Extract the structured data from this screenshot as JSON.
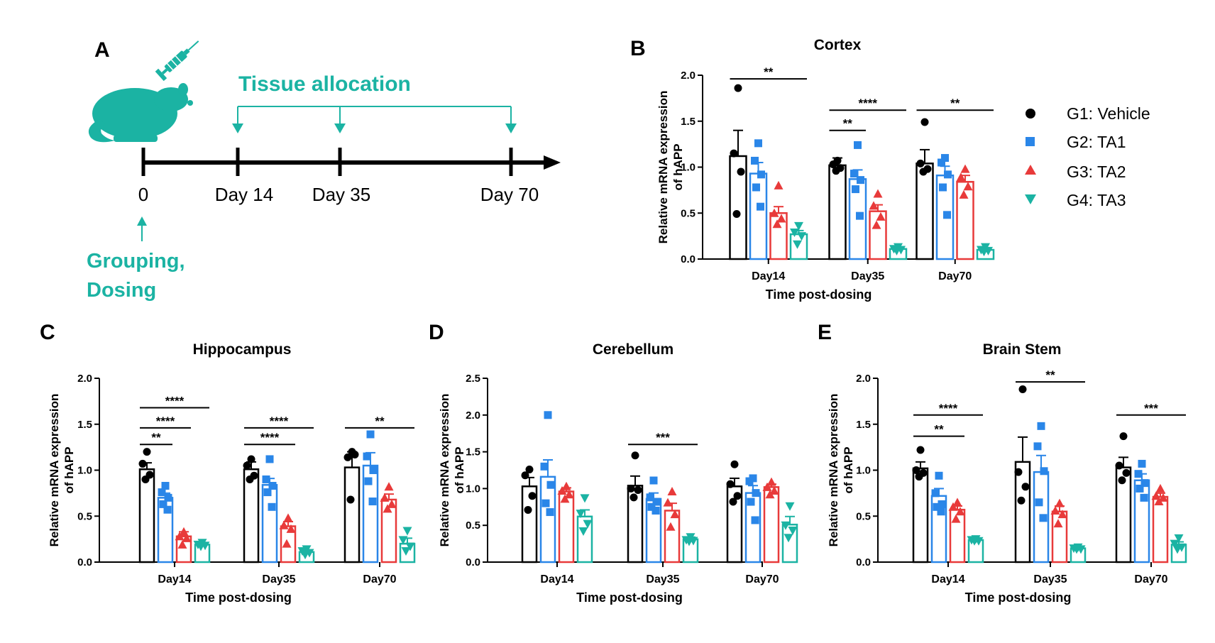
{
  "colors": {
    "G1": "#000000",
    "G2": "#2a86e8",
    "G3": "#e83a3a",
    "G4": "#1bb3a3",
    "teal": "#1bb3a3"
  },
  "panelA": {
    "label": "A",
    "tissue_allocation": "Tissue allocation",
    "timepoints": [
      "0",
      "Day 14",
      "Day 35",
      "Day 70"
    ],
    "grouping_line1": "Grouping,",
    "grouping_line2": "Dosing",
    "icons": [
      "mouse-icon",
      "syringe-icon"
    ]
  },
  "legend": [
    {
      "label": "G1: Vehicle",
      "marker": "circle"
    },
    {
      "label": "G2: TA1",
      "marker": "square"
    },
    {
      "label": "G3: TA2",
      "marker": "triangle-up"
    },
    {
      "label": "G4: TA3",
      "marker": "triangle-down"
    }
  ],
  "chart_data": [
    {
      "panel": "B",
      "type": "bar",
      "title": "Cortex",
      "xlabel": "Time post-dosing",
      "ylabel": [
        "Relative mRNA expression",
        "of hAPP"
      ],
      "categories": [
        "Day14",
        "Day35",
        "Day70"
      ],
      "ylim": [
        0,
        2.0
      ],
      "yticks": [
        "0.0",
        "0.5",
        "1.0",
        "1.5",
        "2.0"
      ],
      "series": [
        {
          "name": "G1: Vehicle",
          "values": [
            1.12,
            1.02,
            1.04
          ],
          "sem": [
            0.28,
            0.08,
            0.15
          ],
          "points": [
            [
              1.86,
              1.15,
              0.95,
              0.49
            ],
            [
              1.07,
              1.03,
              0.99,
              0.96
            ],
            [
              1.49,
              1.04,
              0.98,
              0.95
            ]
          ]
        },
        {
          "name": "G2: TA1",
          "values": [
            0.93,
            0.87,
            0.91
          ],
          "sem": [
            0.12,
            0.1,
            0.1
          ],
          "points": [
            [
              1.26,
              1.07,
              0.92,
              0.78,
              0.57
            ],
            [
              1.24,
              0.93,
              0.86,
              0.76,
              0.47
            ],
            [
              1.1,
              1.05,
              0.92,
              0.78,
              0.48
            ]
          ]
        },
        {
          "name": "G3: TA2",
          "values": [
            0.5,
            0.52,
            0.84
          ],
          "sem": [
            0.07,
            0.07,
            0.07
          ],
          "points": [
            [
              0.8,
              0.5,
              0.44,
              0.38
            ],
            [
              0.71,
              0.58,
              0.46,
              0.37
            ],
            [
              0.98,
              0.89,
              0.79,
              0.7
            ]
          ]
        },
        {
          "name": "G4: TA3",
          "values": [
            0.27,
            0.11,
            0.1
          ],
          "sem": [
            0.04,
            0.01,
            0.02
          ],
          "points": [
            [
              0.36,
              0.29,
              0.25,
              0.16
            ],
            [
              0.13,
              0.11,
              0.1,
              0.09
            ],
            [
              0.13,
              0.1,
              0.09,
              0.08
            ]
          ]
        }
      ],
      "significance": [
        {
          "cat": 0,
          "from": 0,
          "to": 3,
          "label": "**",
          "y": 1.96
        },
        {
          "cat": 1,
          "from": 0,
          "to": 3,
          "label": "****",
          "y": 1.62
        },
        {
          "cat": 1,
          "from": 0,
          "to": 1,
          "label": "**",
          "y": 1.4
        },
        {
          "cat": 2,
          "from": 0,
          "to": 3,
          "label": "**",
          "y": 1.62
        }
      ]
    },
    {
      "panel": "C",
      "type": "bar",
      "title": "Hippocampus",
      "xlabel": "Time post-dosing",
      "ylabel": [
        "Relative mRNA expression",
        "of hAPP"
      ],
      "categories": [
        "Day14",
        "Day35",
        "Day70"
      ],
      "ylim": [
        0,
        2.0
      ],
      "yticks": [
        "0.0",
        "0.5",
        "1.0",
        "1.5",
        "2.0"
      ],
      "series": [
        {
          "name": "G1: Vehicle",
          "values": [
            1.01,
            1.01,
            1.03
          ],
          "sem": [
            0.07,
            0.08,
            0.17
          ],
          "points": [
            [
              1.2,
              1.07,
              0.95,
              0.9
            ],
            [
              1.12,
              1.05,
              0.94,
              0.9
            ],
            [
              1.2,
              1.14,
              1.17,
              0.68
            ]
          ]
        },
        {
          "name": "G2: TA1",
          "values": [
            0.7,
            0.84,
            1.05
          ],
          "sem": [
            0.05,
            0.07,
            0.14
          ],
          "points": [
            [
              0.83,
              0.76,
              0.7,
              0.63,
              0.57
            ],
            [
              1.12,
              0.9,
              0.83,
              0.76,
              0.6
            ],
            [
              1.39,
              1.15,
              1.0,
              0.88,
              0.66
            ]
          ]
        },
        {
          "name": "G3: TA2",
          "values": [
            0.28,
            0.39,
            0.68
          ],
          "sem": [
            0.05,
            0.05,
            0.06
          ],
          "points": [
            [
              0.33,
              0.28,
              0.26,
              0.19
            ],
            [
              0.48,
              0.4,
              0.36,
              0.2
            ],
            [
              0.82,
              0.7,
              0.63,
              0.58
            ]
          ]
        },
        {
          "name": "G4: TA3",
          "values": [
            0.19,
            0.11,
            0.2
          ],
          "sem": [
            0.02,
            0.02,
            0.06
          ],
          "points": [
            [
              0.21,
              0.19,
              0.18,
              0.17
            ],
            [
              0.14,
              0.12,
              0.1,
              0.08
            ],
            [
              0.34,
              0.24,
              0.17,
              0.12
            ]
          ]
        }
      ],
      "significance": [
        {
          "cat": 0,
          "from": 0,
          "to": 3,
          "label": "****",
          "y": 1.68
        },
        {
          "cat": 0,
          "from": 0,
          "to": 2,
          "label": "****",
          "y": 1.46
        },
        {
          "cat": 0,
          "from": 0,
          "to": 1,
          "label": "**",
          "y": 1.28
        },
        {
          "cat": 1,
          "from": 0,
          "to": 3,
          "label": "****",
          "y": 1.46
        },
        {
          "cat": 1,
          "from": 0,
          "to": 2,
          "label": "****",
          "y": 1.28
        },
        {
          "cat": 2,
          "from": 0,
          "to": 3,
          "label": "**",
          "y": 1.46
        }
      ]
    },
    {
      "panel": "D",
      "type": "bar",
      "title": "Cerebellum",
      "xlabel": "Time post-dosing",
      "ylabel": [
        "Relative mRNA expression",
        "of hAPP"
      ],
      "categories": [
        "Day14",
        "Day35",
        "Day70"
      ],
      "ylim": [
        0,
        2.5
      ],
      "yticks": [
        "0.0",
        "0.5",
        "1.0",
        "1.5",
        "2.0",
        "2.5"
      ],
      "series": [
        {
          "name": "G1: Vehicle",
          "values": [
            1.03,
            1.04,
            1.03
          ],
          "sem": [
            0.12,
            0.13,
            0.11
          ],
          "points": [
            [
              1.26,
              1.18,
              0.9,
              0.71
            ],
            [
              1.45,
              1.0,
              0.98,
              0.88
            ],
            [
              1.33,
              1.06,
              0.9,
              0.82
            ]
          ]
        },
        {
          "name": "G2: TA1",
          "values": [
            1.16,
            0.86,
            0.94
          ],
          "sem": [
            0.23,
            0.08,
            0.1
          ],
          "points": [
            [
              2.0,
              1.3,
              1.05,
              0.8,
              0.68
            ],
            [
              1.11,
              0.88,
              0.82,
              0.75,
              0.7
            ],
            [
              1.14,
              1.1,
              0.94,
              0.82,
              0.57
            ]
          ]
        },
        {
          "name": "G3: TA2",
          "values": [
            0.96,
            0.7,
            1.02
          ],
          "sem": [
            0.05,
            0.1,
            0.04
          ],
          "points": [
            [
              1.03,
              0.97,
              0.92,
              0.86
            ],
            [
              0.96,
              0.81,
              0.65,
              0.48
            ],
            [
              1.09,
              1.02,
              0.97,
              0.92
            ]
          ]
        },
        {
          "name": "G4: TA3",
          "values": [
            0.62,
            0.31,
            0.51
          ],
          "sem": [
            0.09,
            0.03,
            0.11
          ],
          "points": [
            [
              0.87,
              0.66,
              0.52,
              0.42
            ],
            [
              0.34,
              0.3,
              0.29,
              0.28
            ],
            [
              0.76,
              0.5,
              0.43,
              0.33
            ]
          ]
        }
      ],
      "significance": [
        {
          "cat": 1,
          "from": 0,
          "to": 3,
          "label": "***",
          "y": 1.6
        }
      ]
    },
    {
      "panel": "E",
      "type": "bar",
      "title": "Brain Stem",
      "xlabel": "Time post-dosing",
      "ylabel": [
        "Relative mRNA expression",
        "of hAPP"
      ],
      "categories": [
        "Day14",
        "Day35",
        "Day70"
      ],
      "ylim": [
        0,
        2.0
      ],
      "yticks": [
        "0.0",
        "0.5",
        "1.0",
        "1.5",
        "2.0"
      ],
      "series": [
        {
          "name": "G1: Vehicle",
          "values": [
            1.02,
            1.09,
            1.03
          ],
          "sem": [
            0.07,
            0.27,
            0.11
          ],
          "points": [
            [
              1.22,
              1.0,
              0.97,
              0.93
            ],
            [
              1.88,
              0.98,
              0.82,
              0.67
            ],
            [
              1.37,
              1.05,
              0.97,
              0.89
            ]
          ]
        },
        {
          "name": "G2: TA1",
          "values": [
            0.72,
            0.98,
            0.89
          ],
          "sem": [
            0.08,
            0.18,
            0.07
          ],
          "points": [
            [
              0.94,
              0.75,
              0.63,
              0.6,
              0.55
            ],
            [
              1.48,
              1.26,
              0.99,
              0.65,
              0.48
            ],
            [
              1.07,
              0.96,
              0.86,
              0.8,
              0.7
            ]
          ]
        },
        {
          "name": "G3: TA2",
          "values": [
            0.57,
            0.55,
            0.71
          ],
          "sem": [
            0.04,
            0.06,
            0.04
          ],
          "points": [
            [
              0.65,
              0.6,
              0.55,
              0.47
            ],
            [
              0.64,
              0.56,
              0.52,
              0.42
            ],
            [
              0.8,
              0.72,
              0.7,
              0.66
            ]
          ]
        },
        {
          "name": "G4: TA3",
          "values": [
            0.24,
            0.15,
            0.19
          ],
          "sem": [
            0.01,
            0.01,
            0.03
          ],
          "points": [
            [
              0.25,
              0.24,
              0.23,
              0.23
            ],
            [
              0.16,
              0.15,
              0.14,
              0.14
            ],
            [
              0.26,
              0.2,
              0.16,
              0.14
            ]
          ]
        }
      ],
      "significance": [
        {
          "cat": 0,
          "from": 0,
          "to": 3,
          "label": "****",
          "y": 1.6
        },
        {
          "cat": 0,
          "from": 0,
          "to": 2,
          "label": "**",
          "y": 1.37
        },
        {
          "cat": 1,
          "from": 0,
          "to": 3,
          "label": "**",
          "y": 1.96
        },
        {
          "cat": 2,
          "from": 0,
          "to": 3,
          "label": "***",
          "y": 1.6
        }
      ]
    }
  ]
}
